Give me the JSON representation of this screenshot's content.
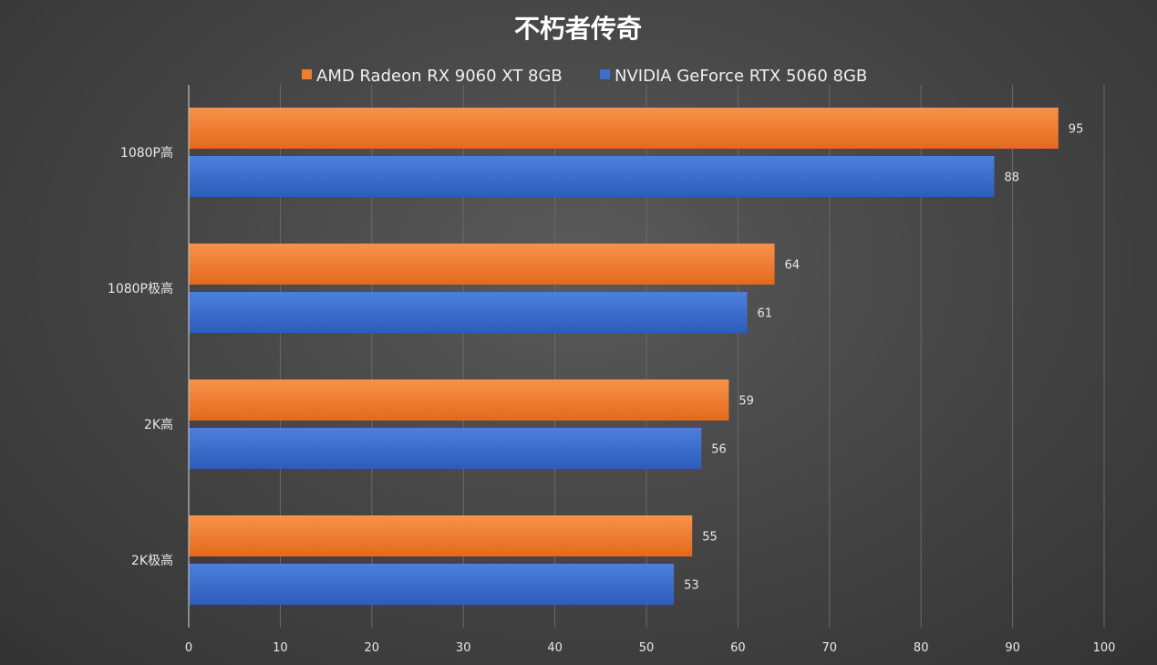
{
  "chart_data": {
    "type": "bar",
    "orientation": "horizontal",
    "title": "不朽者传奇",
    "categories": [
      "1080P高",
      "1080P极高",
      "2K高",
      "2K极高"
    ],
    "series": [
      {
        "name": "AMD Radeon RX 9060 XT 8GB",
        "color": "#f07c2c",
        "values": [
          95,
          64,
          59,
          55
        ]
      },
      {
        "name": "NVIDIA GeForce RTX 5060 8GB",
        "color": "#3f6fcc",
        "values": [
          88,
          61,
          56,
          53
        ]
      }
    ],
    "xlim": [
      0,
      100
    ],
    "xticks": [
      "0",
      "10",
      "20",
      "30",
      "40",
      "50",
      "60",
      "70",
      "80",
      "90",
      "100"
    ],
    "grid": true,
    "legend": "top",
    "data_labels": true
  }
}
